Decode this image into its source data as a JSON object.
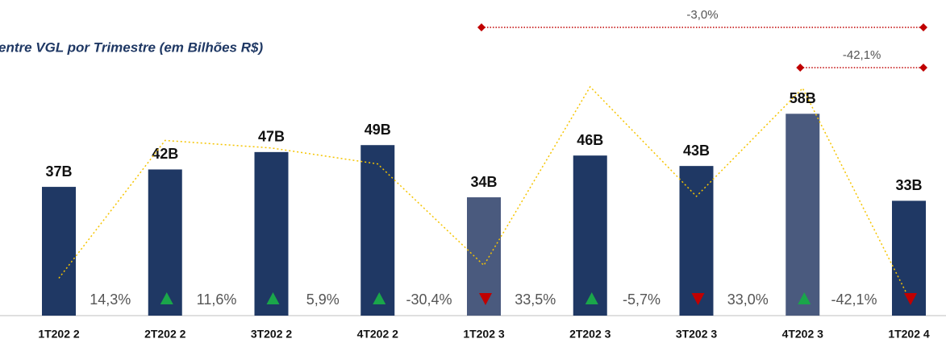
{
  "chart_data": {
    "type": "bar",
    "title": "entre VGL por Trimestre (em Bilhões R$)",
    "categories": [
      "1T202 2",
      "2T202 2",
      "3T202 2",
      "4T202 2",
      "1T202 3",
      "2T202 3",
      "3T202 3",
      "4T202 3",
      "1T202 4"
    ],
    "values": [
      37,
      42,
      47,
      49,
      34,
      46,
      43,
      58,
      33
    ],
    "value_labels": [
      "37B",
      "42B",
      "47B",
      "49B",
      "34B",
      "46B",
      "43B",
      "58B",
      "33B"
    ],
    "colors": [
      "#1f3864",
      "#1f3864",
      "#1f3864",
      "#1f3864",
      "#4a5a7e",
      "#1f3864",
      "#1f3864",
      "#4a5a7e",
      "#1f3864"
    ],
    "ylim": [
      0,
      90
    ],
    "growth": {
      "type": "line",
      "axis": "y2",
      "color": "#f5c400",
      "up_color": "#1aa64a",
      "down_color": "#c00000",
      "values": [
        -35,
        14.3,
        11.6,
        5.9,
        -30.4,
        33.5,
        -5.7,
        33.0,
        -42.1
      ],
      "value_labels": [
        null,
        "14,3%",
        "11,6%",
        "5,9%",
        "-30,4%",
        "33,5%",
        "-5,7%",
        "33,0%",
        "-42,1%"
      ]
    },
    "y2lim": [
      -48.4,
      63.7
    ],
    "annotations": [
      {
        "label": "-3,0%",
        "from": "1T202 3",
        "to": "1T202 4",
        "color": "#c00000"
      },
      {
        "label": "-42,1%",
        "from": "4T202 3",
        "to": "1T202 4",
        "color": "#c00000"
      }
    ]
  }
}
